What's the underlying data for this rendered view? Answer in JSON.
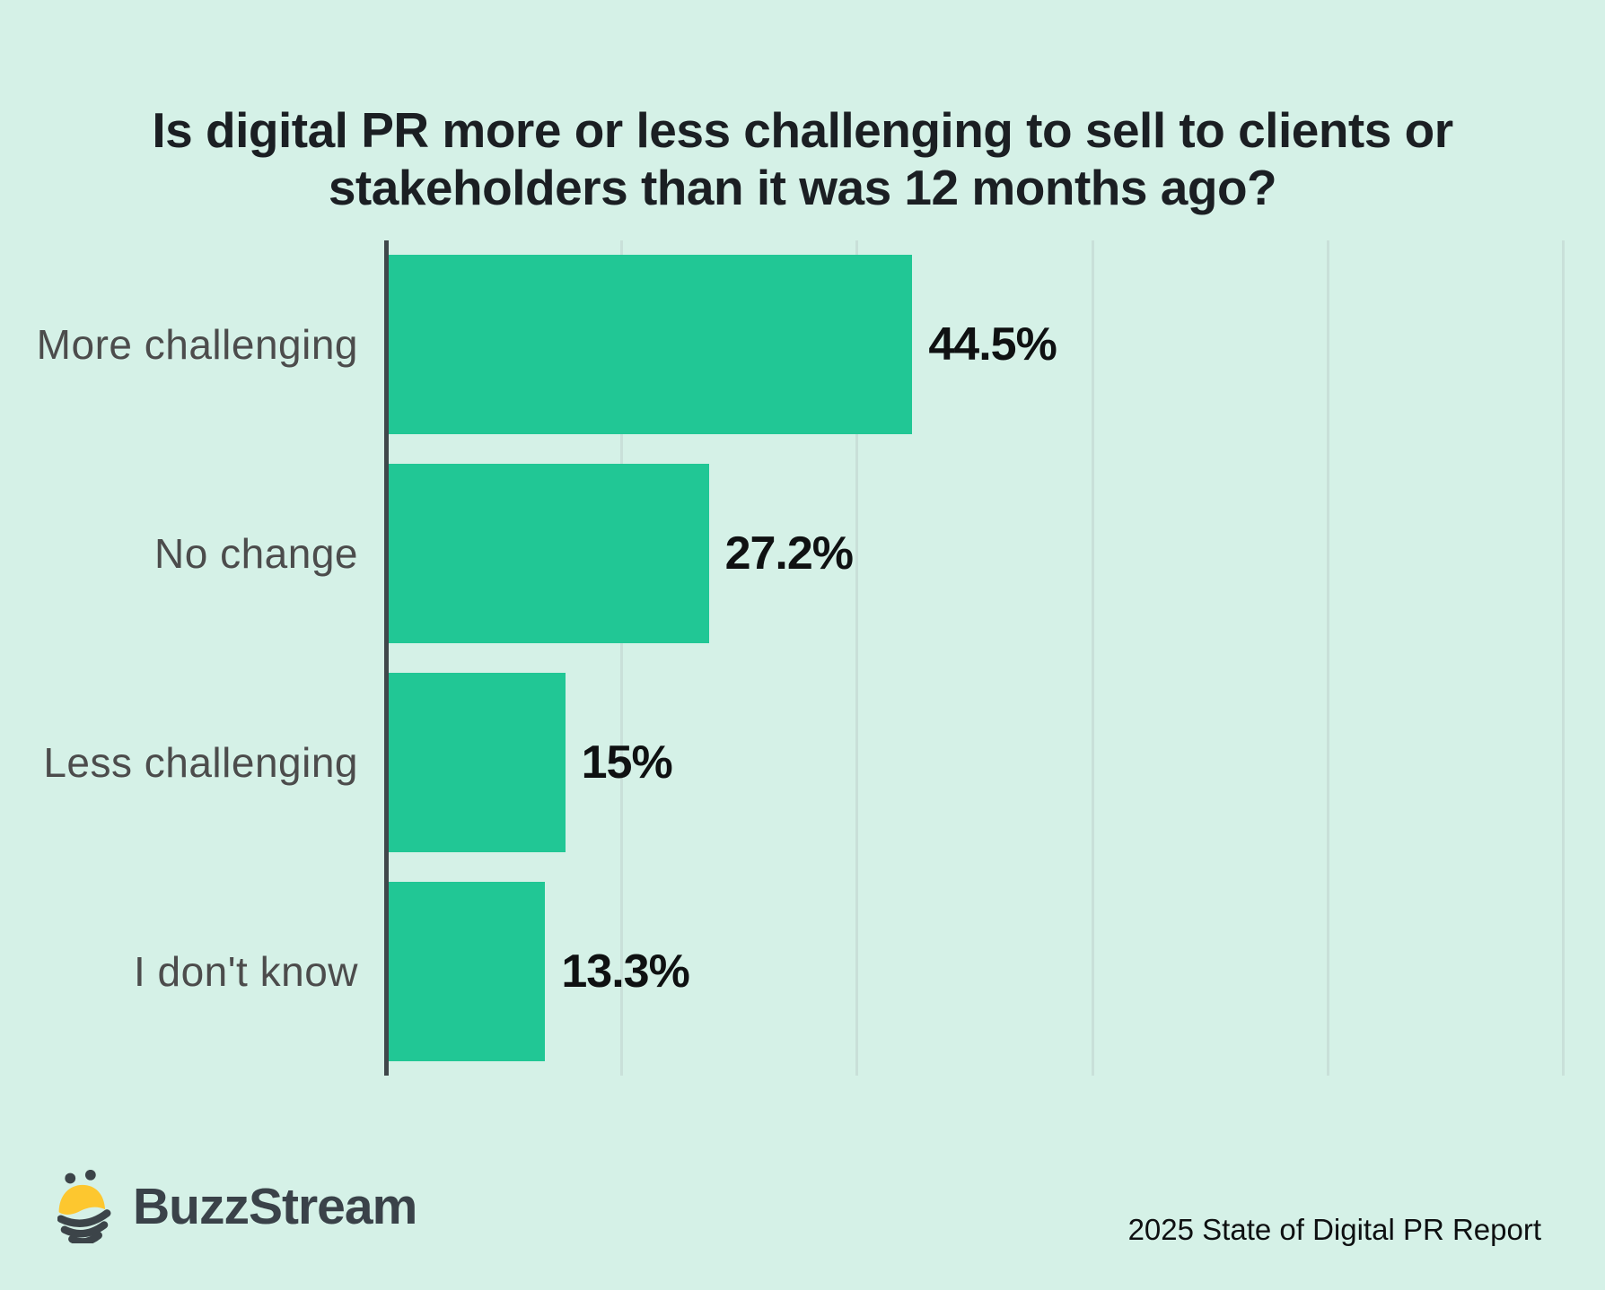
{
  "header": {
    "title_line1": "Is digital PR more or less challenging to sell to clients or",
    "title_line2": "stakeholders than it was 12 months ago?"
  },
  "chart_data": {
    "type": "bar",
    "orientation": "horizontal",
    "title": "Is digital PR more or less challenging to sell to clients or stakeholders than it was 12 months ago?",
    "categories": [
      "More challenging",
      "No change",
      "Less challenging",
      "I don't know"
    ],
    "values": [
      44.5,
      27.2,
      15,
      13.3
    ],
    "value_labels": [
      "44.5%",
      "27.2%",
      "15%",
      "13.3%"
    ],
    "xlabel": "",
    "ylabel": "",
    "xlim": [
      0,
      100
    ],
    "gridline_interval_pct": 20,
    "grid": true,
    "legend": false,
    "bar_color": "#21c795",
    "background_color": "#d5f1e7",
    "axis_color": "#3f474a",
    "gridline_color": "#c9e0d9"
  },
  "footer": {
    "brand": "BuzzStream",
    "caption": "2025 State of Digital PR Report",
    "bee_icon_colors": {
      "yellow": "#fdc72f",
      "dark": "#3c4449"
    }
  }
}
